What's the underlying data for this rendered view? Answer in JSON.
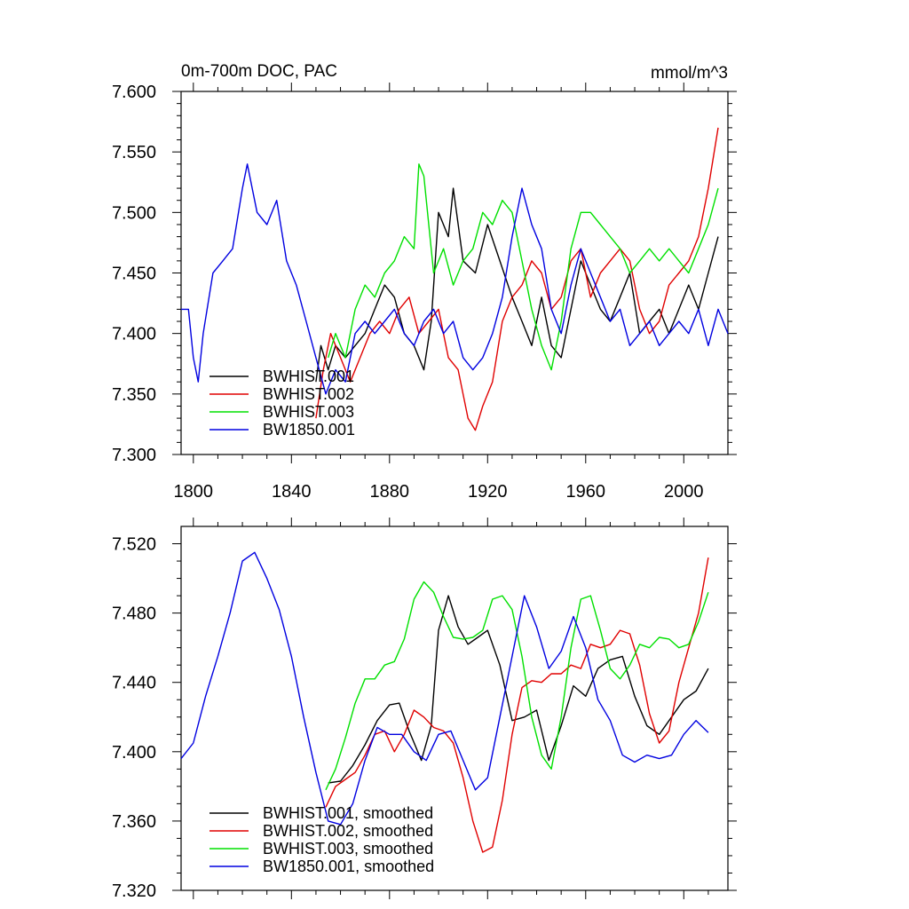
{
  "chart_data": [
    {
      "type": "line",
      "title": "0m-700m DOC, PAC",
      "units": "mmol/m^3",
      "xlim": [
        1795,
        2018
      ],
      "ylim": [
        7.3,
        7.6
      ],
      "x_ticks": [
        1800,
        1840,
        1880,
        1920,
        1960,
        2000
      ],
      "y_ticks": [
        7.3,
        7.35,
        7.4,
        7.45,
        7.5,
        7.55,
        7.6
      ],
      "y_tick_labels": [
        "7.300",
        "7.350",
        "7.400",
        "7.450",
        "7.500",
        "7.550",
        "7.600"
      ],
      "show_x_tick_labels": true,
      "legend_position": "bottom-left",
      "series": [
        {
          "name": "BWHIST.001",
          "color": "#000000",
          "x": [
            1850,
            1852,
            1855,
            1858,
            1862,
            1866,
            1870,
            1874,
            1878,
            1882,
            1886,
            1890,
            1894,
            1897,
            1900,
            1904,
            1906,
            1910,
            1915,
            1920,
            1925,
            1930,
            1934,
            1938,
            1942,
            1946,
            1950,
            1954,
            1958,
            1962,
            1966,
            1970,
            1974,
            1978,
            1982,
            1986,
            1990,
            1994,
            1998,
            2002,
            2006,
            2010,
            2014
          ],
          "y": [
            7.36,
            7.39,
            7.37,
            7.39,
            7.38,
            7.39,
            7.4,
            7.42,
            7.44,
            7.43,
            7.4,
            7.39,
            7.37,
            7.41,
            7.5,
            7.48,
            7.52,
            7.46,
            7.45,
            7.49,
            7.46,
            7.43,
            7.41,
            7.39,
            7.43,
            7.39,
            7.38,
            7.42,
            7.46,
            7.44,
            7.42,
            7.41,
            7.43,
            7.45,
            7.4,
            7.41,
            7.42,
            7.4,
            7.42,
            7.44,
            7.42,
            7.45,
            7.48
          ]
        },
        {
          "name": "BWHIST.002",
          "color": "#e00000",
          "x": [
            1850,
            1853,
            1856,
            1860,
            1864,
            1868,
            1872,
            1876,
            1880,
            1884,
            1888,
            1892,
            1896,
            1900,
            1904,
            1908,
            1912,
            1915,
            1918,
            1922,
            1926,
            1930,
            1934,
            1938,
            1942,
            1946,
            1950,
            1954,
            1958,
            1962,
            1966,
            1970,
            1974,
            1978,
            1982,
            1986,
            1990,
            1994,
            1998,
            2002,
            2006,
            2010,
            2014
          ],
          "y": [
            7.33,
            7.37,
            7.4,
            7.38,
            7.36,
            7.38,
            7.4,
            7.41,
            7.4,
            7.42,
            7.43,
            7.4,
            7.41,
            7.42,
            7.38,
            7.37,
            7.33,
            7.32,
            7.34,
            7.36,
            7.41,
            7.43,
            7.44,
            7.46,
            7.45,
            7.42,
            7.43,
            7.46,
            7.47,
            7.43,
            7.45,
            7.46,
            7.47,
            7.46,
            7.42,
            7.4,
            7.41,
            7.44,
            7.45,
            7.46,
            7.48,
            7.52,
            7.57
          ]
        },
        {
          "name": "BWHIST.003",
          "color": "#00e000",
          "x": [
            1855,
            1858,
            1862,
            1866,
            1870,
            1874,
            1878,
            1882,
            1886,
            1890,
            1892,
            1894,
            1898,
            1902,
            1906,
            1910,
            1914,
            1918,
            1922,
            1926,
            1930,
            1934,
            1938,
            1942,
            1946,
            1950,
            1954,
            1958,
            1962,
            1966,
            1970,
            1974,
            1978,
            1982,
            1986,
            1990,
            1994,
            1998,
            2002,
            2006,
            2010,
            2014
          ],
          "y": [
            7.38,
            7.4,
            7.38,
            7.42,
            7.44,
            7.43,
            7.45,
            7.46,
            7.48,
            7.47,
            7.54,
            7.53,
            7.45,
            7.47,
            7.44,
            7.46,
            7.47,
            7.5,
            7.49,
            7.51,
            7.5,
            7.46,
            7.42,
            7.39,
            7.37,
            7.41,
            7.47,
            7.5,
            7.5,
            7.49,
            7.48,
            7.47,
            7.45,
            7.46,
            7.47,
            7.46,
            7.47,
            7.46,
            7.45,
            7.47,
            7.49,
            7.52
          ]
        },
        {
          "name": "BW1850.001",
          "color": "#0000e0",
          "x": [
            1795,
            1798,
            1800,
            1802,
            1804,
            1808,
            1812,
            1816,
            1820,
            1822,
            1824,
            1826,
            1830,
            1834,
            1838,
            1842,
            1846,
            1850,
            1854,
            1858,
            1862,
            1866,
            1870,
            1874,
            1878,
            1882,
            1886,
            1890,
            1894,
            1898,
            1902,
            1906,
            1910,
            1914,
            1918,
            1922,
            1926,
            1930,
            1934,
            1938,
            1942,
            1946,
            1950,
            1954,
            1958,
            1962,
            1966,
            1970,
            1974,
            1978,
            1982,
            1986,
            1990,
            1994,
            1998,
            2002,
            2006,
            2010,
            2014,
            2018
          ],
          "y": [
            7.42,
            7.42,
            7.38,
            7.36,
            7.4,
            7.45,
            7.46,
            7.47,
            7.52,
            7.54,
            7.52,
            7.5,
            7.49,
            7.51,
            7.46,
            7.44,
            7.41,
            7.38,
            7.35,
            7.37,
            7.36,
            7.4,
            7.41,
            7.4,
            7.41,
            7.42,
            7.4,
            7.39,
            7.41,
            7.42,
            7.4,
            7.41,
            7.38,
            7.37,
            7.38,
            7.4,
            7.43,
            7.48,
            7.52,
            7.49,
            7.47,
            7.42,
            7.4,
            7.44,
            7.47,
            7.45,
            7.43,
            7.41,
            7.42,
            7.39,
            7.4,
            7.41,
            7.39,
            7.4,
            7.41,
            7.4,
            7.42,
            7.39,
            7.42,
            7.4
          ]
        }
      ]
    },
    {
      "type": "line",
      "xlim": [
        1795,
        2018
      ],
      "ylim": [
        7.32,
        7.53
      ],
      "x_ticks": [
        1800,
        1840,
        1880,
        1920,
        1960,
        2000
      ],
      "y_ticks": [
        7.32,
        7.36,
        7.4,
        7.44,
        7.48,
        7.52
      ],
      "y_tick_labels": [
        "7.320",
        "7.360",
        "7.400",
        "7.440",
        "7.480",
        "7.520"
      ],
      "show_x_tick_labels": false,
      "legend_position": "bottom-left",
      "series": [
        {
          "name": "BWHIST.001, smoothed",
          "color": "#000000",
          "x": [
            1855,
            1860,
            1865,
            1870,
            1875,
            1880,
            1884,
            1888,
            1893,
            1897,
            1900,
            1904,
            1908,
            1912,
            1916,
            1920,
            1925,
            1930,
            1935,
            1940,
            1945,
            1950,
            1955,
            1960,
            1965,
            1970,
            1975,
            1980,
            1985,
            1990,
            1995,
            2000,
            2005,
            2010
          ],
          "y": [
            7.382,
            7.383,
            7.392,
            7.404,
            7.418,
            7.427,
            7.428,
            7.412,
            7.395,
            7.415,
            7.47,
            7.49,
            7.472,
            7.462,
            7.466,
            7.47,
            7.45,
            7.418,
            7.42,
            7.424,
            7.395,
            7.415,
            7.438,
            7.432,
            7.448,
            7.453,
            7.455,
            7.432,
            7.415,
            7.41,
            7.42,
            7.43,
            7.435,
            7.448
          ]
        },
        {
          "name": "BWHIST.002, smoothed",
          "color": "#e00000",
          "x": [
            1854,
            1858,
            1862,
            1866,
            1870,
            1874,
            1878,
            1882,
            1886,
            1890,
            1894,
            1898,
            1902,
            1906,
            1910,
            1914,
            1918,
            1922,
            1926,
            1930,
            1934,
            1938,
            1942,
            1946,
            1950,
            1954,
            1958,
            1962,
            1966,
            1970,
            1974,
            1978,
            1982,
            1986,
            1990,
            1994,
            1998,
            2002,
            2006,
            2010
          ],
          "y": [
            7.368,
            7.38,
            7.384,
            7.388,
            7.398,
            7.41,
            7.412,
            7.4,
            7.41,
            7.424,
            7.42,
            7.414,
            7.412,
            7.405,
            7.385,
            7.36,
            7.342,
            7.345,
            7.372,
            7.41,
            7.437,
            7.441,
            7.44,
            7.445,
            7.445,
            7.45,
            7.448,
            7.462,
            7.46,
            7.462,
            7.47,
            7.468,
            7.45,
            7.422,
            7.405,
            7.412,
            7.44,
            7.46,
            7.48,
            7.512
          ]
        },
        {
          "name": "BWHIST.003, smoothed",
          "color": "#00e000",
          "x": [
            1854,
            1858,
            1862,
            1866,
            1870,
            1874,
            1878,
            1882,
            1886,
            1890,
            1894,
            1898,
            1902,
            1906,
            1910,
            1914,
            1918,
            1922,
            1926,
            1930,
            1934,
            1938,
            1942,
            1946,
            1950,
            1954,
            1958,
            1962,
            1966,
            1970,
            1974,
            1978,
            1982,
            1986,
            1990,
            1994,
            1998,
            2002,
            2006,
            2010
          ],
          "y": [
            7.378,
            7.39,
            7.408,
            7.428,
            7.442,
            7.442,
            7.45,
            7.452,
            7.465,
            7.488,
            7.498,
            7.492,
            7.478,
            7.466,
            7.465,
            7.466,
            7.47,
            7.488,
            7.49,
            7.482,
            7.455,
            7.42,
            7.398,
            7.39,
            7.42,
            7.46,
            7.488,
            7.49,
            7.47,
            7.448,
            7.442,
            7.45,
            7.462,
            7.46,
            7.466,
            7.465,
            7.46,
            7.462,
            7.475,
            7.492
          ]
        },
        {
          "name": "BW1850.001, smoothed",
          "color": "#0000e0",
          "x": [
            1795,
            1800,
            1805,
            1810,
            1815,
            1820,
            1825,
            1830,
            1835,
            1840,
            1845,
            1850,
            1855,
            1860,
            1865,
            1870,
            1875,
            1880,
            1885,
            1890,
            1895,
            1900,
            1905,
            1910,
            1915,
            1920,
            1925,
            1930,
            1935,
            1940,
            1945,
            1950,
            1955,
            1960,
            1965,
            1970,
            1975,
            1980,
            1985,
            1990,
            1995,
            2000,
            2005,
            2010
          ],
          "y": [
            7.396,
            7.405,
            7.432,
            7.455,
            7.48,
            7.51,
            7.515,
            7.5,
            7.482,
            7.455,
            7.42,
            7.388,
            7.36,
            7.358,
            7.37,
            7.395,
            7.414,
            7.41,
            7.41,
            7.4,
            7.395,
            7.41,
            7.412,
            7.395,
            7.378,
            7.385,
            7.42,
            7.455,
            7.49,
            7.472,
            7.448,
            7.458,
            7.478,
            7.46,
            7.43,
            7.418,
            7.398,
            7.394,
            7.398,
            7.396,
            7.398,
            7.41,
            7.418,
            7.411
          ]
        }
      ]
    }
  ]
}
